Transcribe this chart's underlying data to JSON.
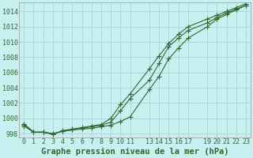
{
  "background_color": "#c8f0f0",
  "grid_color": "#b0d8d8",
  "line_color": "#2d6a2d",
  "title": "Graphe pression niveau de la mer (hPa)",
  "xlim": [
    -0.5,
    23.5
  ],
  "ylim": [
    997.5,
    1015.2
  ],
  "yticks": [
    998,
    1000,
    1002,
    1004,
    1006,
    1008,
    1010,
    1012,
    1014
  ],
  "xticks": [
    0,
    1,
    2,
    3,
    4,
    5,
    6,
    7,
    8,
    9,
    10,
    11,
    13,
    14,
    15,
    16,
    17,
    19,
    20,
    21,
    22,
    23
  ],
  "xtick_labels": [
    "0",
    "1",
    "2",
    "3",
    "4",
    "5",
    "6",
    "7",
    "8",
    "9",
    "10",
    "11",
    "13",
    "14",
    "15",
    "16",
    "17",
    "19",
    "20",
    "21",
    "22",
    "23"
  ],
  "series1_x": [
    0,
    1,
    2,
    3,
    4,
    5,
    6,
    7,
    8,
    9,
    10,
    11,
    13,
    14,
    15,
    16,
    17,
    19,
    20,
    21,
    22,
    23
  ],
  "series1_y": [
    999.0,
    998.2,
    998.2,
    998.0,
    998.3,
    998.5,
    998.6,
    998.7,
    998.9,
    999.1,
    999.6,
    1000.2,
    1003.8,
    1005.5,
    1007.8,
    1009.2,
    1010.5,
    1012.0,
    1013.0,
    1013.6,
    1014.2,
    1014.8
  ],
  "series2_x": [
    0,
    1,
    2,
    3,
    4,
    5,
    6,
    7,
    8,
    9,
    10,
    11,
    13,
    14,
    15,
    16,
    17,
    19,
    20,
    21,
    22,
    23
  ],
  "series2_y": [
    999.2,
    998.2,
    998.2,
    998.0,
    998.3,
    998.5,
    998.7,
    998.9,
    999.1,
    999.5,
    1001.0,
    1002.6,
    1005.0,
    1007.2,
    1009.4,
    1010.5,
    1011.5,
    1012.5,
    1013.2,
    1013.8,
    1014.3,
    1014.8
  ],
  "series3_x": [
    0,
    1,
    2,
    3,
    4,
    5,
    6,
    7,
    8,
    9,
    10,
    11,
    13,
    14,
    15,
    16,
    17,
    19,
    20,
    21,
    22,
    23
  ],
  "series3_y": [
    999.3,
    998.2,
    998.2,
    997.9,
    998.4,
    998.6,
    998.8,
    999.0,
    999.2,
    1000.0,
    1001.8,
    1003.2,
    1006.5,
    1008.2,
    1009.8,
    1011.0,
    1012.0,
    1013.0,
    1013.5,
    1014.0,
    1014.5,
    1015.0
  ],
  "title_fontsize": 7.5,
  "tick_fontsize": 6,
  "markersize": 2.2,
  "linewidth": 0.8
}
